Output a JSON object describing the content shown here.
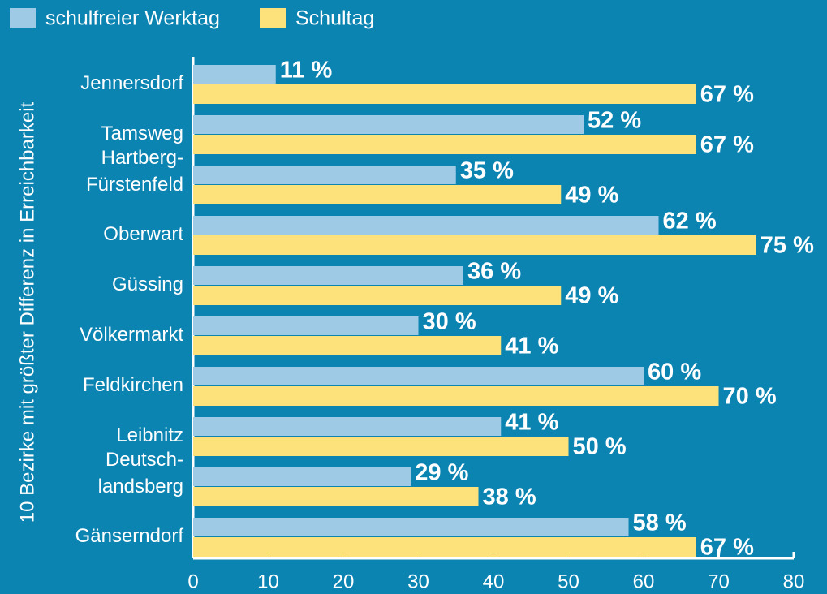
{
  "chart_data": {
    "type": "hbar",
    "y_label": "10 Bezirke mit größter Differenz in Erreichbarkeit",
    "categories": [
      "Jennersdorf",
      "Tamsweg",
      "Hartberg-\nFürstenfeld",
      "Oberwart",
      "Güssing",
      "Völkermarkt",
      "Feldkirchen",
      "Leibnitz",
      "Deutsch-\nlandsberg",
      "Gänserndorf"
    ],
    "series": [
      {
        "name": "schulfreier Werktag",
        "color": "#9ecae6",
        "values": [
          11,
          52,
          35,
          62,
          36,
          30,
          60,
          41,
          29,
          58
        ],
        "value_labels": [
          "11 %",
          "52 %",
          "35 %",
          "62 %",
          "36 %",
          "30 %",
          "60 %",
          "41 %",
          "29 %",
          "58 %"
        ]
      },
      {
        "name": "Schultag",
        "color": "#fde27c",
        "values": [
          67,
          67,
          49,
          75,
          49,
          41,
          70,
          50,
          38,
          67
        ],
        "value_labels": [
          "67 %",
          "67 %",
          "49 %",
          "75 %",
          "49 %",
          "41 %",
          "70 %",
          "50 %",
          "38 %",
          "67 %"
        ]
      }
    ],
    "xlim": [
      0,
      80
    ],
    "xticks": [
      0,
      10,
      20,
      30,
      40,
      50,
      60,
      70,
      80
    ],
    "legend": "top-left"
  }
}
